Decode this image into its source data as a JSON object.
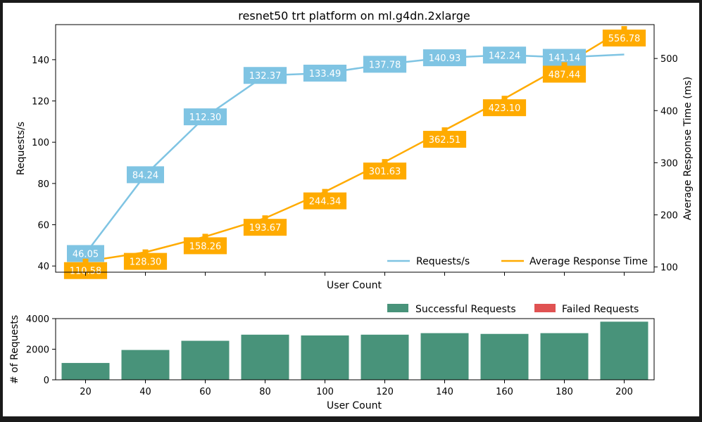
{
  "chart_data": [
    {
      "type": "line",
      "title": "resnet50 trt platform on ml.g4dn.2xlarge",
      "xlabel": "User Count",
      "ylabel": "Requests/s",
      "y2label": "Average Response Time (ms)",
      "x": [
        20,
        40,
        60,
        80,
        100,
        120,
        140,
        160,
        180,
        200
      ],
      "x_tick_labels_shown": false,
      "ylim": [
        37,
        157
      ],
      "yticks": [
        40,
        60,
        80,
        100,
        120,
        140
      ],
      "y2lim": [
        90,
        565
      ],
      "y2ticks": [
        100,
        200,
        300,
        400,
        500
      ],
      "series": [
        {
          "name": "Requests/s",
          "axis": "left",
          "color": "#7fc4e3",
          "values": [
            46.05,
            84.24,
            112.3,
            132.37,
            133.49,
            137.78,
            140.93,
            142.24,
            141.14,
            142.5
          ],
          "labels": [
            "46.05",
            "84.24",
            "112.30",
            "132.37",
            "133.49",
            "137.78",
            "140.93",
            "142.24",
            "141.14",
            ""
          ]
        },
        {
          "name": "Average Response Time",
          "axis": "right",
          "color": "#ffab00",
          "values": [
            110.58,
            128.3,
            158.26,
            193.67,
            244.34,
            301.63,
            362.51,
            423.1,
            487.44,
            556.78
          ],
          "labels": [
            "110.58",
            "128.30",
            "158.26",
            "193.67",
            "244.34",
            "301.63",
            "362.51",
            "423.10",
            "487.44",
            "556.78"
          ]
        }
      ],
      "legend": "bottom-right",
      "grid": false
    },
    {
      "type": "bar",
      "xlabel": "User Count",
      "ylabel": "# of Requests",
      "categories": [
        "20",
        "40",
        "60",
        "80",
        "100",
        "120",
        "140",
        "160",
        "180",
        "200"
      ],
      "ylim": [
        0,
        4000
      ],
      "yticks": [
        0,
        2000,
        4000
      ],
      "series": [
        {
          "name": "Successful Requests",
          "color": "#48937a",
          "values": [
            1100,
            1950,
            2550,
            2950,
            2900,
            2950,
            3050,
            3000,
            3050,
            3800
          ]
        },
        {
          "name": "Failed Requests",
          "color": "#e05252",
          "values": [
            0,
            0,
            0,
            0,
            0,
            0,
            0,
            0,
            0,
            0
          ]
        }
      ],
      "legend": "top-right",
      "grid": false
    }
  ]
}
